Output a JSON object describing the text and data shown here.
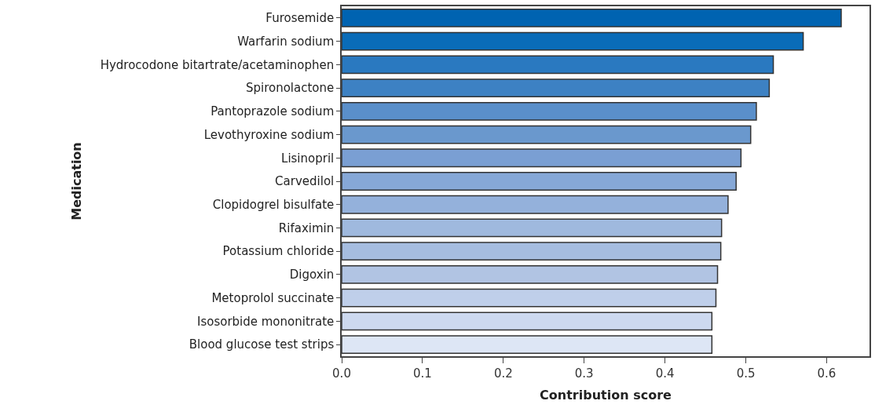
{
  "chart_data": {
    "type": "bar",
    "orientation": "horizontal",
    "xlabel": "Contribution score",
    "ylabel": "Medication",
    "categories": [
      "Furosemide",
      "Warfarin sodium",
      "Hydrocodone bitartrate/acetaminophen",
      "Spironolactone",
      "Pantoprazole sodium",
      "Levothyroxine sodium",
      "Lisinopril",
      "Carvedilol",
      "Clopidogrel bisulfate",
      "Rifaximin",
      "Potassium chloride",
      "Digoxin",
      "Metoprolol succinate",
      "Isosorbide mononitrate",
      "Blood glucose test strips"
    ],
    "values": [
      0.618,
      0.571,
      0.534,
      0.529,
      0.513,
      0.506,
      0.494,
      0.488,
      0.478,
      0.47,
      0.469,
      0.465,
      0.463,
      0.458,
      0.458
    ],
    "colors": [
      "#0063b1",
      "#0a6cb8",
      "#2a79c0",
      "#3d81c3",
      "#5a8fca",
      "#6a98cd",
      "#7a9fd3",
      "#86a8d7",
      "#94b1db",
      "#9fb9de",
      "#a6bde0",
      "#b1c4e3",
      "#bfcfea",
      "#cdd9ef",
      "#dde6f5"
    ],
    "xlim": [
      0,
      0.653
    ],
    "xticks": [
      {
        "value": 0,
        "label": "0.0"
      },
      0.1,
      0.2,
      0.3,
      0.4,
      0.5,
      0.6
    ],
    "grid": false
  }
}
